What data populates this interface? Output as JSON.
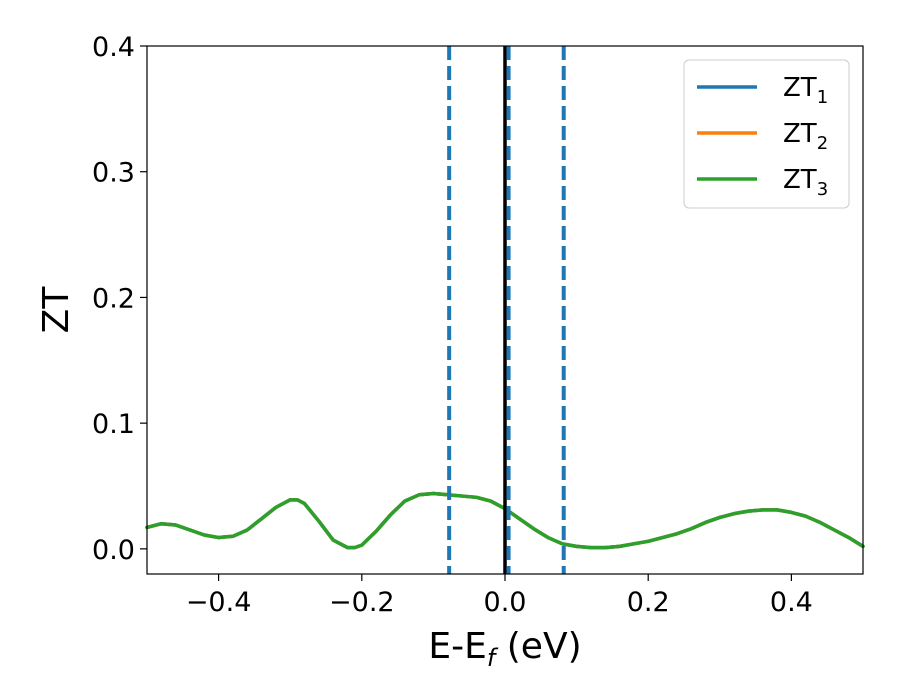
{
  "chart_data": {
    "type": "line",
    "xlabel": "E-E",
    "xlabel_sub": "f",
    "xlabel_unit": " (eV)",
    "ylabel": "ZT",
    "xlim": [
      -0.5,
      0.5
    ],
    "ylim": [
      -0.02,
      0.4
    ],
    "xticks": [
      -0.4,
      -0.2,
      0.0,
      0.2,
      0.4
    ],
    "xtick_labels": [
      "−0.4",
      "−0.2",
      "0.0",
      "0.2",
      "0.4"
    ],
    "yticks": [
      0.0,
      0.1,
      0.2,
      0.3,
      0.4
    ],
    "ytick_labels": [
      "0.0",
      "0.1",
      "0.2",
      "0.3",
      "0.4"
    ],
    "grid": false,
    "legend_position": "top-right",
    "series": [
      {
        "name": "ZT",
        "name_sub": "1",
        "color": "#1f77b4",
        "x": [
          -0.5,
          -0.48,
          -0.46,
          -0.44,
          -0.42,
          -0.4,
          -0.38,
          -0.36,
          -0.34,
          -0.32,
          -0.3,
          -0.29,
          -0.28,
          -0.26,
          -0.24,
          -0.22,
          -0.21,
          -0.2,
          -0.18,
          -0.16,
          -0.14,
          -0.12,
          -0.1,
          -0.08,
          -0.06,
          -0.04,
          -0.02,
          0.0,
          0.02,
          0.04,
          0.06,
          0.08,
          0.1,
          0.12,
          0.14,
          0.16,
          0.18,
          0.2,
          0.22,
          0.24,
          0.26,
          0.28,
          0.3,
          0.32,
          0.34,
          0.36,
          0.38,
          0.4,
          0.42,
          0.44,
          0.46,
          0.48,
          0.5
        ],
        "y": [
          0.017,
          0.02,
          0.019,
          0.015,
          0.011,
          0.009,
          0.01,
          0.015,
          0.024,
          0.033,
          0.039,
          0.039,
          0.036,
          0.022,
          0.007,
          0.001,
          0.001,
          0.003,
          0.014,
          0.027,
          0.038,
          0.043,
          0.044,
          0.043,
          0.042,
          0.041,
          0.038,
          0.032,
          0.024,
          0.016,
          0.009,
          0.004,
          0.002,
          0.001,
          0.001,
          0.002,
          0.004,
          0.006,
          0.009,
          0.012,
          0.016,
          0.021,
          0.025,
          0.028,
          0.03,
          0.031,
          0.031,
          0.029,
          0.026,
          0.021,
          0.015,
          0.009,
          0.002
        ]
      },
      {
        "name": "ZT",
        "name_sub": "2",
        "color": "#ff7f0e",
        "x": [
          -0.5,
          -0.48,
          -0.46,
          -0.44,
          -0.42,
          -0.4,
          -0.38,
          -0.36,
          -0.34,
          -0.32,
          -0.3,
          -0.29,
          -0.28,
          -0.26,
          -0.24,
          -0.22,
          -0.21,
          -0.2,
          -0.18,
          -0.16,
          -0.14,
          -0.12,
          -0.1,
          -0.08,
          -0.06,
          -0.04,
          -0.02,
          0.0,
          0.02,
          0.04,
          0.06,
          0.08,
          0.1,
          0.12,
          0.14,
          0.16,
          0.18,
          0.2,
          0.22,
          0.24,
          0.26,
          0.28,
          0.3,
          0.32,
          0.34,
          0.36,
          0.38,
          0.4,
          0.42,
          0.44,
          0.46,
          0.48,
          0.5
        ],
        "y": [
          0.017,
          0.02,
          0.019,
          0.015,
          0.011,
          0.009,
          0.01,
          0.015,
          0.024,
          0.033,
          0.039,
          0.039,
          0.036,
          0.022,
          0.007,
          0.001,
          0.001,
          0.003,
          0.014,
          0.027,
          0.038,
          0.043,
          0.044,
          0.043,
          0.042,
          0.041,
          0.038,
          0.032,
          0.024,
          0.016,
          0.009,
          0.004,
          0.002,
          0.001,
          0.001,
          0.002,
          0.004,
          0.006,
          0.009,
          0.012,
          0.016,
          0.021,
          0.025,
          0.028,
          0.03,
          0.031,
          0.031,
          0.029,
          0.026,
          0.021,
          0.015,
          0.009,
          0.002
        ]
      },
      {
        "name": "ZT",
        "name_sub": "3",
        "color": "#2ca02c",
        "x": [
          -0.5,
          -0.48,
          -0.46,
          -0.44,
          -0.42,
          -0.4,
          -0.38,
          -0.36,
          -0.34,
          -0.32,
          -0.3,
          -0.29,
          -0.28,
          -0.26,
          -0.24,
          -0.22,
          -0.21,
          -0.2,
          -0.18,
          -0.16,
          -0.14,
          -0.12,
          -0.1,
          -0.08,
          -0.06,
          -0.04,
          -0.02,
          0.0,
          0.02,
          0.04,
          0.06,
          0.08,
          0.1,
          0.12,
          0.14,
          0.16,
          0.18,
          0.2,
          0.22,
          0.24,
          0.26,
          0.28,
          0.3,
          0.32,
          0.34,
          0.36,
          0.38,
          0.4,
          0.42,
          0.44,
          0.46,
          0.48,
          0.5
        ],
        "y": [
          0.017,
          0.02,
          0.019,
          0.015,
          0.011,
          0.009,
          0.01,
          0.015,
          0.024,
          0.033,
          0.039,
          0.039,
          0.036,
          0.022,
          0.007,
          0.001,
          0.001,
          0.003,
          0.014,
          0.027,
          0.038,
          0.043,
          0.044,
          0.043,
          0.042,
          0.041,
          0.038,
          0.032,
          0.024,
          0.016,
          0.009,
          0.004,
          0.002,
          0.001,
          0.001,
          0.002,
          0.004,
          0.006,
          0.009,
          0.012,
          0.016,
          0.021,
          0.025,
          0.028,
          0.03,
          0.031,
          0.031,
          0.029,
          0.026,
          0.021,
          0.015,
          0.009,
          0.002
        ]
      }
    ],
    "vertical_lines": [
      {
        "x": 0.0,
        "style": "solid",
        "color": "#000000"
      },
      {
        "x": -0.078,
        "style": "dashed",
        "color": "#1f77b4"
      },
      {
        "x": 0.005,
        "style": "dashed",
        "color": "#1f77b4"
      },
      {
        "x": 0.082,
        "style": "dashed",
        "color": "#1f77b4"
      }
    ]
  }
}
